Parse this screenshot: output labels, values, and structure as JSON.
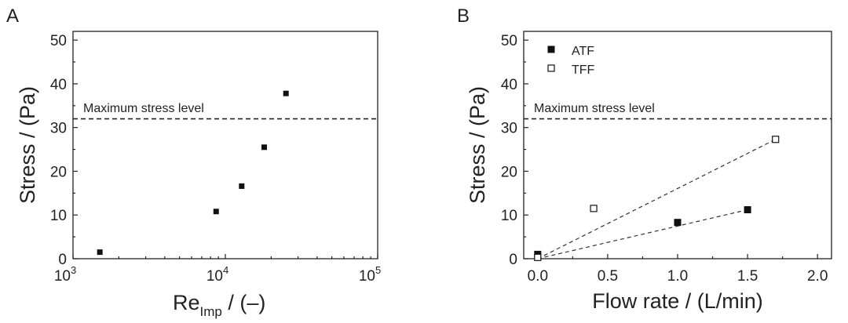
{
  "chart_data": [
    {
      "panel": "A",
      "type": "scatter",
      "xscale": "log",
      "xlim": [
        1000,
        100000
      ],
      "ylim": [
        0,
        52
      ],
      "xticks": [
        {
          "value": 1000,
          "base": "10",
          "exp": "3"
        },
        {
          "value": 10000,
          "base": "10",
          "exp": "4"
        },
        {
          "value": 100000,
          "base": "10",
          "exp": "5"
        }
      ],
      "yticks": [
        "0",
        "10",
        "20",
        "30",
        "40",
        "50"
      ],
      "xlabel": {
        "main": "Re",
        "sub": "Imp",
        "suffix": " / (–)"
      },
      "ylabel": "Stress / (Pa)",
      "series": [
        {
          "marker": "filled-square",
          "x": [
            1500,
            8700,
            12800,
            18000,
            25000
          ],
          "y": [
            1.5,
            10.8,
            16.6,
            25.5,
            37.8
          ]
        }
      ],
      "hline": {
        "y": 32,
        "label": "Maximum stress level"
      }
    },
    {
      "panel": "B",
      "type": "scatter",
      "xlim": [
        -0.1,
        2.1
      ],
      "ylim": [
        0,
        52
      ],
      "xticks": [
        "0.0",
        "0.5",
        "1.0",
        "1.5",
        "2.0"
      ],
      "yticks": [
        "0",
        "10",
        "20",
        "30",
        "40",
        "50"
      ],
      "xlabel": "Flow rate / (L/min)",
      "ylabel": "Stress / (Pa)",
      "series": [
        {
          "name": "ATF",
          "marker": "filled-square",
          "x": [
            0,
            1.0,
            1.5
          ],
          "y": [
            1.0,
            8.3,
            11.2
          ],
          "fit": [
            [
              0,
              0
            ],
            [
              1.5,
              11.2
            ]
          ]
        },
        {
          "name": "TFF",
          "marker": "open-square",
          "x": [
            0,
            0.4,
            1.7
          ],
          "y": [
            0.3,
            11.5,
            27.3
          ],
          "fit": [
            [
              0,
              0
            ],
            [
              1.7,
              27.3
            ]
          ]
        }
      ],
      "hline": {
        "y": 32,
        "label": "Maximum stress level"
      },
      "legend": "top-left"
    }
  ]
}
